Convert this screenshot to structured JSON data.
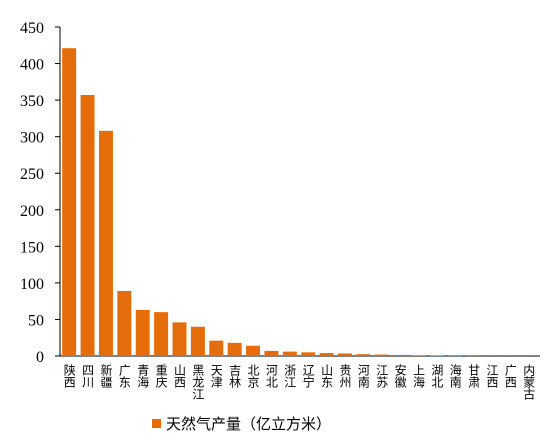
{
  "chart_data": {
    "type": "bar",
    "categories": [
      "陕西",
      "四川",
      "新疆",
      "广东",
      "青海",
      "重庆",
      "山西",
      "黑龙江",
      "天津",
      "吉林",
      "北京",
      "河北",
      "浙江",
      "辽宁",
      "山东",
      "贵州",
      "河南",
      "江苏",
      "安徽",
      "上海",
      "湖北",
      "海南",
      "甘肃",
      "江西",
      "广西",
      "内蒙古"
    ],
    "series": [
      {
        "name": "天然气产量（亿立方米）",
        "color": "#e46c0a",
        "values": [
          421,
          357,
          308,
          89,
          63,
          60,
          46,
          40,
          21,
          18,
          14,
          7,
          6,
          5,
          4,
          3.5,
          2.5,
          2,
          1.5,
          1,
          0.5,
          0.3,
          0.2,
          0.1,
          0.1,
          0.1
        ]
      }
    ],
    "ylim": [
      0,
      450
    ],
    "yticks": [
      0,
      50,
      100,
      150,
      200,
      250,
      300,
      350,
      400,
      450
    ],
    "legend": "bottom"
  }
}
